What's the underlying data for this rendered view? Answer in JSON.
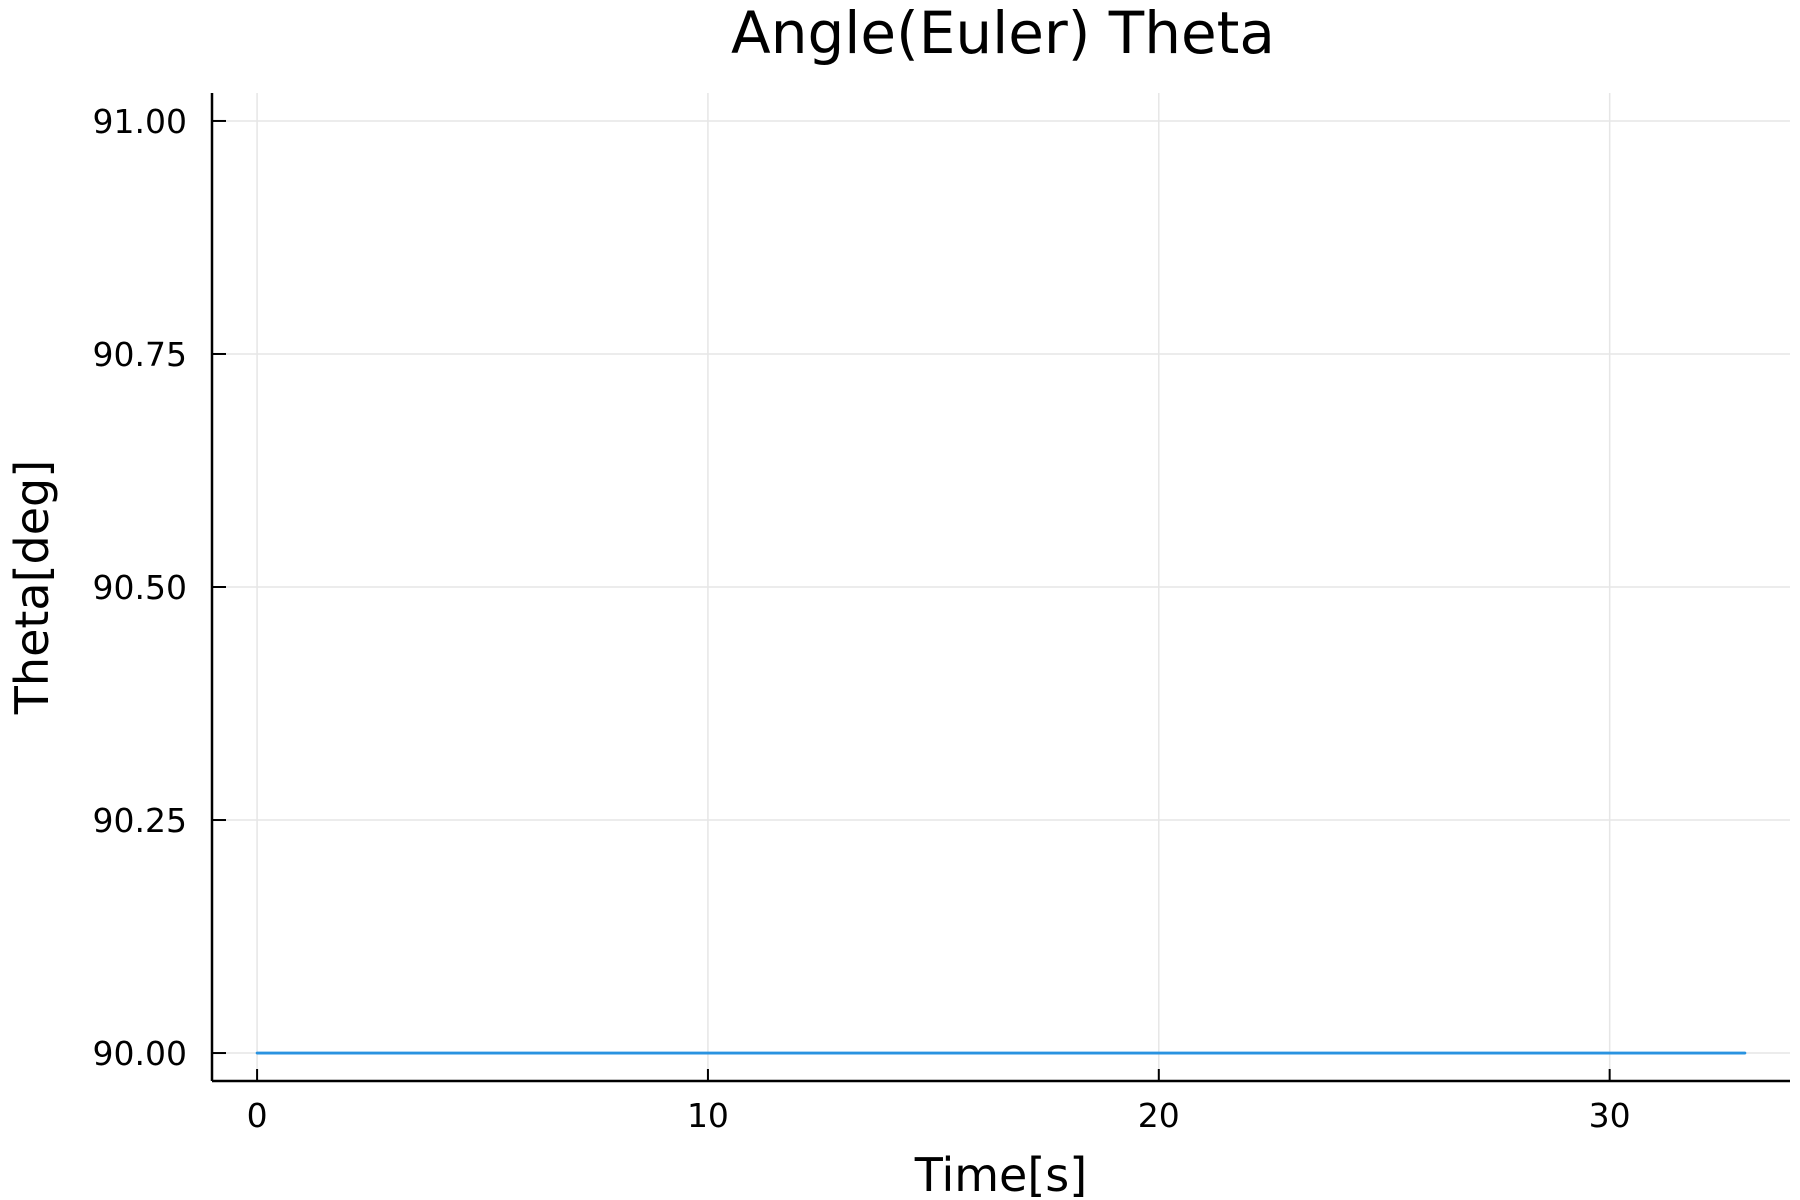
{
  "chart_data": {
    "type": "line",
    "title": "Angle(Euler) Theta",
    "xlabel": "Time[s]",
    "ylabel": "Theta[deg]",
    "xlim": [
      -1,
      34
    ],
    "ylim": [
      89.97,
      91.03
    ],
    "xticks": [
      0,
      10,
      20,
      30
    ],
    "xtick_labels": [
      "0",
      "10",
      "20",
      "30"
    ],
    "yticks": [
      90.0,
      90.25,
      90.5,
      90.75,
      91.0
    ],
    "ytick_labels": [
      "90.00",
      "90.25",
      "90.50",
      "90.75",
      "91.00"
    ],
    "grid": true,
    "legend": "none",
    "series": [
      {
        "name": "Theta",
        "color": "#2a93e0",
        "x": [
          0,
          33
        ],
        "y": [
          90.0,
          90.0
        ]
      }
    ]
  }
}
